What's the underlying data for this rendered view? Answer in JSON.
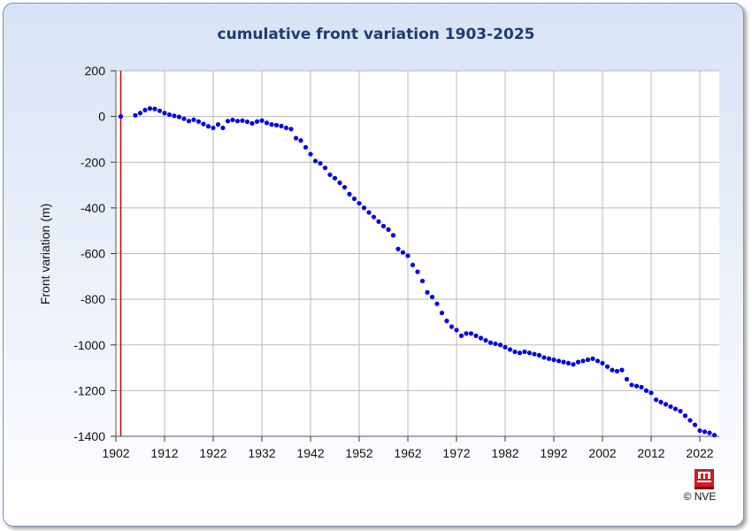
{
  "chart_data": {
    "type": "scatter",
    "title": "cumulative front variation 1903-2025",
    "xlabel": "",
    "ylabel": "Front variation (m)",
    "xlim": [
      1902,
      2026
    ],
    "ylim": [
      -1400,
      200
    ],
    "x_ticks": [
      1902,
      1912,
      1922,
      1932,
      1942,
      1952,
      1962,
      1972,
      1982,
      1992,
      2002,
      2012,
      2022
    ],
    "y_ticks": [
      200,
      0,
      -200,
      -400,
      -600,
      -800,
      -1000,
      -1200,
      -1400
    ],
    "grid": true,
    "point_color": "#0000e6",
    "reference_line": {
      "x": 1903,
      "color": "#cc0000"
    },
    "series": [
      {
        "x": [
          1903,
          1906,
          1907,
          1908,
          1909,
          1910,
          1911,
          1912,
          1913,
          1914,
          1915,
          1916,
          1917,
          1918,
          1919,
          1920,
          1921,
          1922,
          1923,
          1924,
          1925,
          1926,
          1927,
          1928,
          1929,
          1930,
          1931,
          1932,
          1933,
          1934,
          1935,
          1936,
          1937,
          1938,
          1939,
          1940,
          1941,
          1942,
          1943,
          1944,
          1945,
          1946,
          1947,
          1948,
          1949,
          1950,
          1951,
          1952,
          1953,
          1954,
          1955,
          1956,
          1957,
          1958,
          1959,
          1960,
          1961,
          1962,
          1963,
          1964,
          1965,
          1966,
          1967,
          1968,
          1969,
          1970,
          1971,
          1972,
          1973,
          1974,
          1975,
          1976,
          1977,
          1978,
          1979,
          1980,
          1981,
          1982,
          1983,
          1984,
          1985,
          1986,
          1987,
          1988,
          1989,
          1990,
          1991,
          1992,
          1993,
          1994,
          1995,
          1996,
          1997,
          1998,
          1999,
          2000,
          2001,
          2002,
          2003,
          2004,
          2005,
          2006,
          2007,
          2008,
          2009,
          2010,
          2011,
          2012,
          2013,
          2014,
          2015,
          2016,
          2017,
          2018,
          2019,
          2020,
          2021,
          2022,
          2023,
          2024,
          2025
        ],
        "y": [
          0,
          5,
          15,
          28,
          35,
          33,
          25,
          15,
          8,
          3,
          -2,
          -10,
          -20,
          -14,
          -22,
          -33,
          -43,
          -50,
          -35,
          -50,
          -20,
          -15,
          -20,
          -18,
          -23,
          -30,
          -22,
          -18,
          -28,
          -35,
          -38,
          -42,
          -50,
          -55,
          -95,
          -105,
          -135,
          -165,
          -195,
          -205,
          -225,
          -255,
          -270,
          -290,
          -310,
          -340,
          -360,
          -380,
          -400,
          -420,
          -440,
          -460,
          -480,
          -495,
          -520,
          -580,
          -595,
          -610,
          -650,
          -680,
          -720,
          -770,
          -790,
          -820,
          -860,
          -895,
          -920,
          -935,
          -960,
          -950,
          -950,
          -960,
          -970,
          -980,
          -990,
          -995,
          -1000,
          -1010,
          -1020,
          -1030,
          -1035,
          -1030,
          -1035,
          -1040,
          -1045,
          -1055,
          -1060,
          -1065,
          -1070,
          -1075,
          -1080,
          -1085,
          -1075,
          -1070,
          -1065,
          -1060,
          -1070,
          -1080,
          -1095,
          -1110,
          -1115,
          -1110,
          -1150,
          -1175,
          -1180,
          -1185,
          -1200,
          -1210,
          -1240,
          -1250,
          -1260,
          -1270,
          -1280,
          -1290,
          -1310,
          -1330,
          -1350,
          -1375,
          -1380,
          -1385,
          -1395
        ]
      }
    ]
  },
  "copyright": "© NVE",
  "logo_text": "NVE"
}
